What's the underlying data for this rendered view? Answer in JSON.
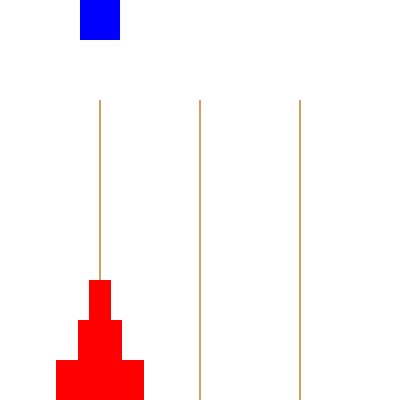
{
  "game": {
    "name": "",
    "pegs": [
      {
        "id": "peg-1",
        "disks": [
          3,
          2,
          1
        ]
      },
      {
        "id": "peg-2",
        "disks": []
      },
      {
        "id": "peg-3",
        "disks": []
      }
    ],
    "selected_peg": 0,
    "held_disk": null
  },
  "colors": {
    "background": "#ffffff",
    "peg": "#d2a060",
    "disk": "#ff0000",
    "selector": "#0000ff"
  }
}
